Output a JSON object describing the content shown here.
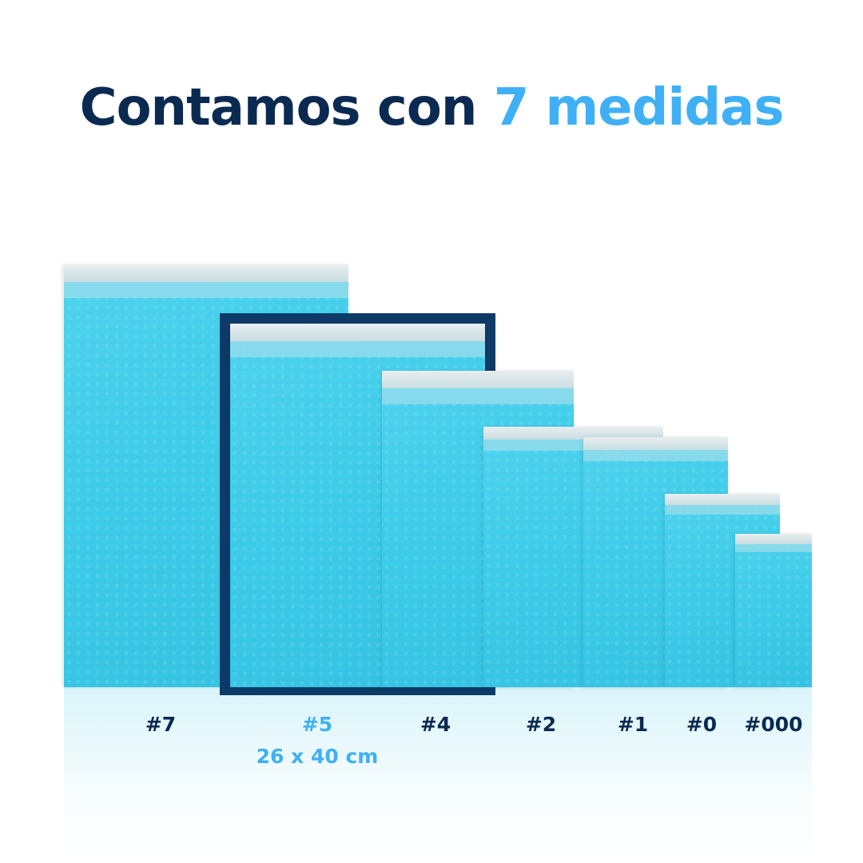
{
  "title": {
    "prefix": "Contamos con",
    "highlight": "7 medidas"
  },
  "colors": {
    "navy": "#0b2a52",
    "accent": "#3fb0f5",
    "frame": "#0d3a66",
    "envelope": "#3ccbe8"
  },
  "sizes": [
    {
      "label": "#7"
    },
    {
      "label": "#5",
      "dimensions": "26 x 40 cm",
      "highlighted": true
    },
    {
      "label": "#4"
    },
    {
      "label": "#2"
    },
    {
      "label": "#1"
    },
    {
      "label": "#0"
    },
    {
      "label": "#000"
    }
  ]
}
